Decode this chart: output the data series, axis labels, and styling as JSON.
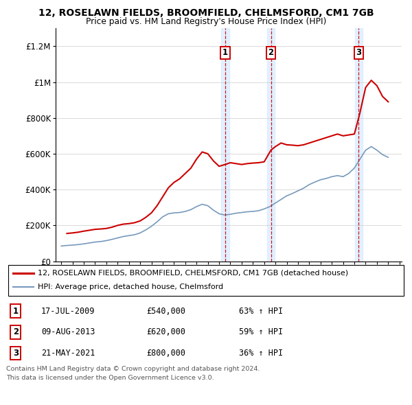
{
  "title1": "12, ROSELAWN FIELDS, BROOMFIELD, CHELMSFORD, CM1 7GB",
  "title2": "Price paid vs. HM Land Registry's House Price Index (HPI)",
  "legend_line1": "12, ROSELAWN FIELDS, BROOMFIELD, CHELMSFORD, CM1 7GB (detached house)",
  "legend_line2": "HPI: Average price, detached house, Chelmsford",
  "transactions": [
    {
      "num": 1,
      "date": "17-JUL-2009",
      "price": "£540,000",
      "pct": "63% ↑ HPI"
    },
    {
      "num": 2,
      "date": "09-AUG-2013",
      "price": "£620,000",
      "pct": "59% ↑ HPI"
    },
    {
      "num": 3,
      "date": "21-MAY-2021",
      "price": "£800,000",
      "pct": "36% ↑ HPI"
    }
  ],
  "transaction_years": [
    2009.54,
    2013.6,
    2021.38
  ],
  "vline_color": "#cc0000",
  "shade_color": "#ddeeff",
  "red_line_color": "#cc0000",
  "blue_line_color": "#7799bb",
  "footer1": "Contains HM Land Registry data © Crown copyright and database right 2024.",
  "footer2": "This data is licensed under the Open Government Licence v3.0.",
  "ylim": [
    0,
    1300000
  ],
  "yticks": [
    0,
    200000,
    400000,
    600000,
    800000,
    1000000,
    1200000
  ],
  "ytick_labels": [
    "£0",
    "£200K",
    "£400K",
    "£600K",
    "£800K",
    "£1M",
    "£1.2M"
  ],
  "red_years": [
    1995.5,
    1996.0,
    1996.5,
    1997.0,
    1997.5,
    1998.0,
    1998.5,
    1999.0,
    1999.5,
    2000.0,
    2000.5,
    2001.0,
    2001.5,
    2002.0,
    2002.5,
    2003.0,
    2003.5,
    2004.0,
    2004.5,
    2005.0,
    2005.5,
    2006.0,
    2006.5,
    2007.0,
    2007.5,
    2008.0,
    2008.5,
    2009.0,
    2009.54,
    2010.0,
    2010.5,
    2011.0,
    2011.5,
    2012.0,
    2012.5,
    2013.0,
    2013.6,
    2014.0,
    2014.5,
    2015.0,
    2015.5,
    2016.0,
    2016.5,
    2017.0,
    2017.5,
    2018.0,
    2018.5,
    2019.0,
    2019.5,
    2020.0,
    2020.5,
    2021.0,
    2021.38,
    2021.5,
    2022.0,
    2022.5,
    2023.0,
    2023.5,
    2024.0
  ],
  "red_prices": [
    155000,
    158000,
    162000,
    168000,
    173000,
    178000,
    180000,
    183000,
    190000,
    200000,
    207000,
    210000,
    215000,
    225000,
    245000,
    270000,
    310000,
    360000,
    410000,
    440000,
    460000,
    490000,
    520000,
    570000,
    610000,
    600000,
    560000,
    530000,
    540000,
    550000,
    545000,
    540000,
    545000,
    548000,
    550000,
    555000,
    620000,
    640000,
    660000,
    650000,
    648000,
    645000,
    650000,
    660000,
    670000,
    680000,
    690000,
    700000,
    710000,
    700000,
    705000,
    710000,
    800000,
    830000,
    970000,
    1010000,
    980000,
    920000,
    890000
  ],
  "blue_years": [
    1995.0,
    1995.5,
    1996.0,
    1996.5,
    1997.0,
    1997.5,
    1998.0,
    1998.5,
    1999.0,
    1999.5,
    2000.0,
    2000.5,
    2001.0,
    2001.5,
    2002.0,
    2002.5,
    2003.0,
    2003.5,
    2004.0,
    2004.5,
    2005.0,
    2005.5,
    2006.0,
    2006.5,
    2007.0,
    2007.5,
    2008.0,
    2008.5,
    2009.0,
    2009.5,
    2010.0,
    2010.5,
    2011.0,
    2011.5,
    2012.0,
    2012.5,
    2013.0,
    2013.5,
    2014.0,
    2014.5,
    2015.0,
    2015.5,
    2016.0,
    2016.5,
    2017.0,
    2017.5,
    2018.0,
    2018.5,
    2019.0,
    2019.5,
    2020.0,
    2020.5,
    2021.0,
    2021.5,
    2022.0,
    2022.5,
    2023.0,
    2023.5,
    2024.0
  ],
  "blue_prices": [
    85000,
    88000,
    90000,
    93000,
    97000,
    102000,
    107000,
    110000,
    115000,
    122000,
    130000,
    138000,
    143000,
    148000,
    158000,
    175000,
    195000,
    220000,
    248000,
    265000,
    270000,
    272000,
    278000,
    288000,
    305000,
    318000,
    310000,
    285000,
    265000,
    258000,
    262000,
    268000,
    272000,
    276000,
    278000,
    282000,
    292000,
    305000,
    325000,
    345000,
    365000,
    378000,
    393000,
    408000,
    428000,
    442000,
    455000,
    462000,
    472000,
    478000,
    472000,
    490000,
    520000,
    570000,
    620000,
    640000,
    620000,
    595000,
    580000
  ]
}
